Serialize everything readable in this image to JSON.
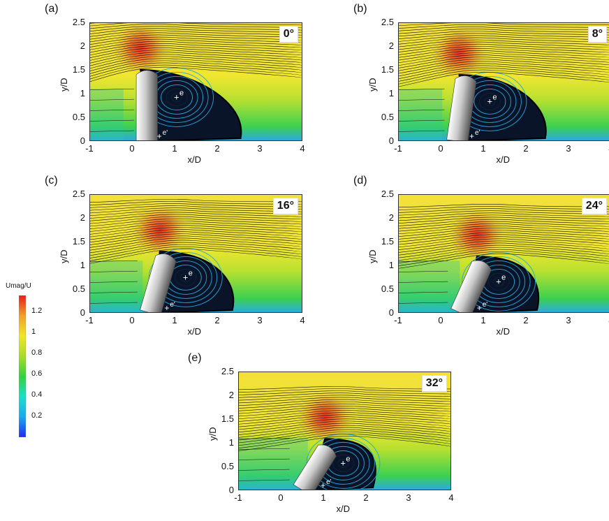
{
  "colorbar": {
    "title": "Umag/U",
    "ticks": [
      "1.2",
      "1",
      "0.8",
      "0.6",
      "0.4",
      "0.2"
    ],
    "tick_values": [
      1.2,
      1.0,
      0.8,
      0.6,
      0.4,
      0.2
    ],
    "range": [
      0.0,
      1.35
    ],
    "stops": [
      "#1e2cf0",
      "#1aa8f0",
      "#19e0c8",
      "#32d23c",
      "#a8dc28",
      "#f0e628",
      "#f0a028",
      "#e81c1c"
    ]
  },
  "axes_text": {
    "x_label": "x/D",
    "y_label": "y/D",
    "x_ticks": [
      "-1",
      "0",
      "1",
      "2",
      "3",
      "4"
    ],
    "y_ticks": [
      "2.5",
      "2",
      "1.5",
      "1",
      "0.5",
      "0"
    ]
  },
  "vortex_labels": {
    "primary": "e",
    "secondary": "e'"
  },
  "panels": [
    {
      "letter": "(a)",
      "angle": "0°",
      "tilt_deg": 0
    },
    {
      "letter": "(b)",
      "angle": "8°",
      "tilt_deg": 8
    },
    {
      "letter": "(c)",
      "angle": "16°",
      "tilt_deg": 16
    },
    {
      "letter": "(d)",
      "angle": "24°",
      "tilt_deg": 24
    },
    {
      "letter": "(e)",
      "angle": "32°",
      "tilt_deg": 32
    }
  ]
}
